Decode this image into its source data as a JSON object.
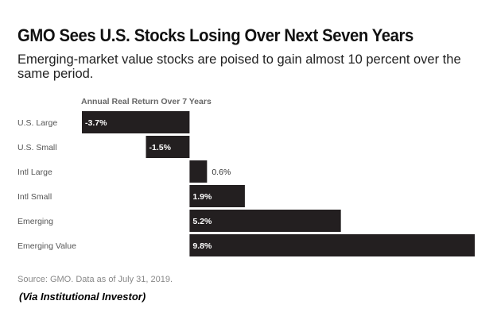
{
  "header": {
    "title": "GMO Sees U.S. Stocks Losing Over Next Seven Years",
    "subtitle": "Emerging-market value stocks are poised to gain almost 10 percent over the same period."
  },
  "chart_data": {
    "type": "bar",
    "orientation": "horizontal",
    "axis_title": "Annual Real Return Over 7 Years",
    "categories": [
      "U.S. Large",
      "U.S. Small",
      "Intl Large",
      "Intl Small",
      "Emerging",
      "Emerging Value"
    ],
    "values": [
      -3.7,
      -1.5,
      0.6,
      1.9,
      5.2,
      9.8
    ],
    "labels": [
      "-3.7%",
      "-1.5%",
      "0.6%",
      "1.9%",
      "5.2%",
      "9.8%"
    ],
    "xlim": [
      -3.7,
      9.8
    ],
    "bar_color": "#231f20",
    "inside_label_color": "#ffffff",
    "outside_label_color": "#333333"
  },
  "footer": {
    "source": "Source: GMO. Data as of July 31, 2019.",
    "credit": "(Via Institutional Investor)"
  }
}
